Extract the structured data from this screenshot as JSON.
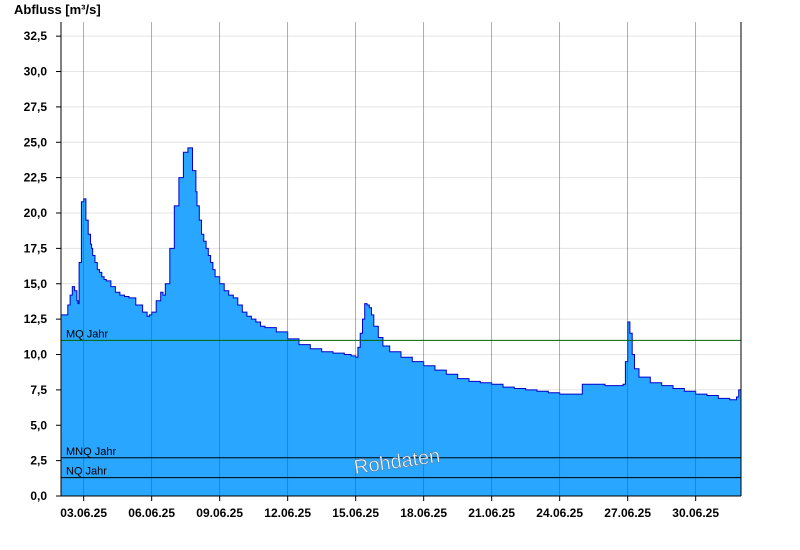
{
  "chart_data": {
    "type": "area",
    "ylabel": "Abfluss [m³/s]",
    "xlabel": "",
    "title": "",
    "ylim": [
      0,
      33.5
    ],
    "xlim": [
      2.0,
      32.0
    ],
    "yticks": [
      0,
      2.5,
      5,
      7.5,
      10,
      12.5,
      15,
      17.5,
      20,
      22.5,
      25,
      27.5,
      30,
      32.5
    ],
    "ytick_labels": [
      "0,0",
      "2,5",
      "5,0",
      "7,5",
      "10,0",
      "12,5",
      "15,0",
      "17,5",
      "20,0",
      "22,5",
      "25,0",
      "27,5",
      "30,0",
      "32,5"
    ],
    "xticks": [
      3,
      6,
      9,
      12,
      15,
      18,
      21,
      24,
      27,
      30
    ],
    "xtick_labels": [
      "03.06.25",
      "06.06.25",
      "09.06.25",
      "12.06.25",
      "15.06.25",
      "18.06.25",
      "21.06.25",
      "24.06.25",
      "27.06.25",
      "30.06.25"
    ],
    "grid": true,
    "fill_color": "#29a6ff",
    "line_color": "#0000cc",
    "watermark": "Rohdaten",
    "reference_lines": [
      {
        "label": "MQ Jahr",
        "value": 11.0,
        "color": "#006400"
      },
      {
        "label": "MNQ Jahr",
        "value": 2.7,
        "color": "#000000"
      },
      {
        "label": "NQ Jahr",
        "value": 1.3,
        "color": "#000000"
      }
    ],
    "series": [
      {
        "x": [
          2.0,
          2.3,
          2.4,
          2.5,
          2.6,
          2.7,
          2.75,
          2.8,
          2.9,
          3.0,
          3.1,
          3.2,
          3.3,
          3.35,
          3.4,
          3.5,
          3.6,
          3.7,
          3.8,
          3.9,
          4.0,
          4.2,
          4.4,
          4.6,
          4.8,
          5.0,
          5.3,
          5.6,
          5.8,
          5.9,
          6.0,
          6.2,
          6.4,
          6.5,
          6.6,
          6.8,
          7.0,
          7.2,
          7.4,
          7.6,
          7.8,
          7.95,
          8.0,
          8.1,
          8.2,
          8.3,
          8.4,
          8.5,
          8.6,
          8.7,
          8.8,
          9.0,
          9.2,
          9.4,
          9.6,
          9.8,
          10.0,
          10.2,
          10.4,
          10.6,
          10.8,
          11.0,
          11.5,
          12.0,
          12.5,
          13.0,
          13.5,
          14.0,
          14.5,
          14.8,
          15.0,
          15.1,
          15.2,
          15.3,
          15.4,
          15.5,
          15.6,
          15.7,
          15.8,
          16.0,
          16.2,
          16.5,
          17.0,
          17.5,
          18.0,
          18.5,
          19.0,
          19.5,
          20.0,
          20.5,
          21.0,
          21.5,
          22.0,
          22.5,
          23.0,
          23.5,
          24.0,
          24.5,
          25.0,
          25.5,
          26.0,
          26.5,
          26.8,
          26.9,
          27.0,
          27.1,
          27.2,
          27.3,
          27.5,
          28.0,
          28.5,
          29.0,
          29.5,
          30.0,
          30.5,
          31.0,
          31.5,
          31.7,
          31.8,
          31.9,
          32.0
        ],
        "y": [
          12.8,
          13.5,
          14.2,
          14.8,
          14.5,
          13.8,
          13.6,
          16.5,
          20.8,
          21.0,
          19.5,
          18.5,
          17.8,
          17.5,
          17.0,
          16.5,
          16.0,
          15.8,
          15.5,
          15.3,
          15.2,
          14.8,
          14.4,
          14.2,
          14.1,
          14.0,
          13.5,
          13.0,
          12.7,
          12.8,
          13.0,
          13.8,
          14.4,
          14.2,
          15.0,
          17.5,
          20.5,
          22.5,
          24.3,
          24.6,
          23.0,
          21.5,
          20.5,
          19.5,
          18.5,
          18.0,
          17.5,
          17.0,
          16.5,
          16.0,
          15.5,
          15.0,
          14.5,
          14.2,
          14.0,
          13.5,
          13.0,
          12.7,
          12.5,
          12.3,
          12.0,
          11.9,
          11.6,
          11.1,
          10.7,
          10.4,
          10.2,
          10.1,
          10.0,
          9.9,
          9.8,
          10.5,
          11.5,
          12.5,
          13.6,
          13.5,
          13.3,
          12.8,
          12.0,
          11.2,
          10.6,
          10.2,
          9.8,
          9.5,
          9.2,
          8.9,
          8.6,
          8.3,
          8.1,
          8.0,
          7.9,
          7.7,
          7.6,
          7.5,
          7.4,
          7.3,
          7.2,
          7.2,
          7.9,
          7.9,
          7.8,
          7.8,
          7.9,
          9.5,
          12.3,
          11.5,
          10.0,
          9.0,
          8.4,
          8.0,
          7.8,
          7.6,
          7.4,
          7.2,
          7.1,
          6.9,
          6.8,
          6.8,
          7.0,
          7.5,
          7.0
        ]
      }
    ]
  }
}
